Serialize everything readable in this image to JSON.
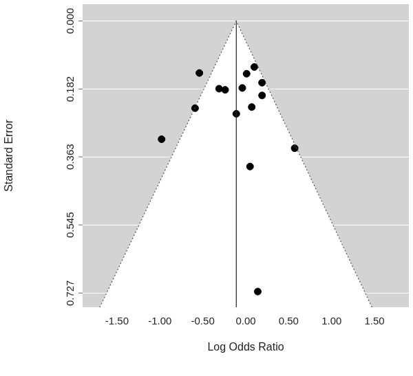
{
  "chart_data": {
    "type": "scatter",
    "x_label": "Log Odds Ratio",
    "y_label": "Standard Error",
    "x": [
      -0.54,
      0.1,
      0.01,
      0.19,
      -0.31,
      -0.24,
      -0.04,
      0.19,
      -0.59,
      0.07,
      -0.11,
      -0.98,
      0.57,
      0.05,
      0.14
    ],
    "values": [
      0.139,
      0.123,
      0.141,
      0.165,
      0.181,
      0.184,
      0.179,
      0.199,
      0.233,
      0.23,
      0.248,
      0.316,
      0.34,
      0.389,
      0.723
    ],
    "color": "#000000",
    "marker": "circle",
    "xlim": [
      -1.9,
      1.9
    ],
    "ylim": [
      0.765,
      -0.045
    ],
    "xticks": [
      {
        "value": -1.5,
        "label": "-1.50"
      },
      {
        "value": -1.0,
        "label": "-1.00"
      },
      {
        "value": -0.5,
        "label": "-0.50"
      },
      {
        "value": 0,
        "label": "0.00"
      },
      {
        "value": 0.5,
        "label": "0.50"
      },
      {
        "value": 1.0,
        "label": "1.00"
      },
      {
        "value": 1.5,
        "label": "1.50"
      }
    ],
    "yticks": [
      {
        "value": 0,
        "label": "0.000"
      },
      0.182,
      0.363,
      0.545,
      0.727
    ],
    "grid": true,
    "reference_line": -0.11,
    "funnel": {
      "x": [
        -1.7,
        -0.11,
        1.47
      ],
      "y": [
        0.765,
        0,
        0.765
      ]
    }
  }
}
